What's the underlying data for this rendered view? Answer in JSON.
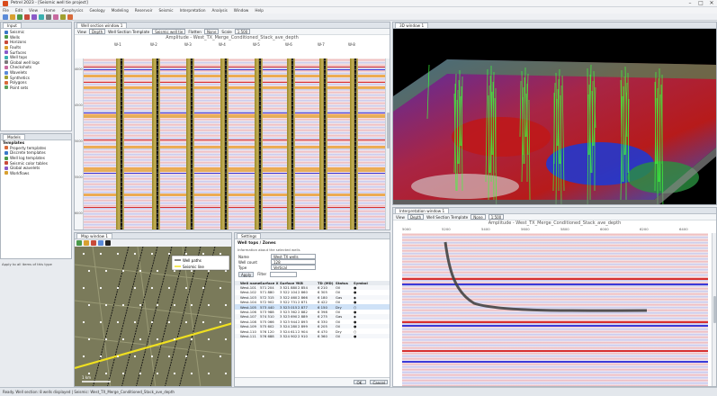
{
  "app": {
    "title": "Petrel 2023 - [Seismic well tie project]",
    "window_controls": [
      "–",
      "□",
      "✕"
    ]
  },
  "menu": [
    "File",
    "Edit",
    "View",
    "Home",
    "Geophysics",
    "Geology",
    "Modeling",
    "Reservoir",
    "Seismic",
    "Interpretation",
    "Analysis",
    "Window",
    "Help"
  ],
  "explorer": {
    "tab_label": "Input",
    "items": [
      {
        "label": "Seismic",
        "color": "#3a78c8"
      },
      {
        "label": "Wells",
        "color": "#4a9a4a"
      },
      {
        "label": "Horizons",
        "color": "#c84a3a"
      },
      {
        "label": "Faults",
        "color": "#d8a030"
      },
      {
        "label": "Surfaces",
        "color": "#8a5ac8"
      },
      {
        "label": "Well tops",
        "color": "#3ab0b0"
      },
      {
        "label": "Global well logs",
        "color": "#7a7a7a"
      },
      {
        "label": "Checkshots",
        "color": "#c86aa0"
      },
      {
        "label": "Wavelets",
        "color": "#5a8ad8"
      },
      {
        "label": "Synthetics",
        "color": "#a0a030"
      },
      {
        "label": "Polygons",
        "color": "#d86a3a"
      },
      {
        "label": "Point sets",
        "color": "#5aa05a"
      }
    ]
  },
  "models": {
    "tab_label": "Models",
    "section": "Templates",
    "items": [
      {
        "label": "Property templates",
        "color": "#d86a3a"
      },
      {
        "label": "Discrete templates",
        "color": "#3a78c8"
      },
      {
        "label": "Well log templates",
        "color": "#4a9a4a"
      },
      {
        "label": "Seismic color tables",
        "color": "#c84a3a"
      },
      {
        "label": "Global wavelets",
        "color": "#8a5ac8"
      },
      {
        "label": "Workflows",
        "color": "#d8a030"
      }
    ]
  },
  "sidebar_footer": "Apply to all items of this type",
  "well_section": {
    "tab_label": "Well section window 1",
    "controls": {
      "view_label": "View",
      "domain": "Depth",
      "template_label": "Well Section Template",
      "template_value": "Seismic well tie",
      "flatten_label": "Flatten",
      "flatten_value": "None",
      "scale_label": "Scale",
      "scale_value": "1:500"
    },
    "title": "Amplitude - West_TX_Merge_Conditioned_Stack_ave_depth",
    "depth_ticks": [
      "4000",
      "4500",
      "5000",
      "5500",
      "6000"
    ],
    "well_headers": [
      "W-1",
      "W-2",
      "W-3",
      "W-4",
      "W-5",
      "W-6",
      "W-7",
      "W-8"
    ]
  },
  "view3d": {
    "tab_label": "3D window 1"
  },
  "map": {
    "tab_label": "Map window 1",
    "legend": [
      "Well paths",
      "Seismic line"
    ],
    "scale": "1 km"
  },
  "settings": {
    "tab_label": "Settings",
    "header": "Well tops / Zones",
    "subheader": "Information about the selected wells",
    "fields": [
      {
        "label": "Name",
        "value": "West TX wells"
      },
      {
        "label": "Well count",
        "value": "128"
      },
      {
        "label": "Type",
        "value": "Vertical"
      }
    ],
    "button": "Apply",
    "filter_label": "Filter",
    "columns": [
      "Well name",
      "Surface X",
      "Surface Y",
      "KB",
      "TD (MD)",
      "Status",
      "Symbol"
    ],
    "rows": [
      [
        "West-101",
        "571 204",
        "3 521 880",
        "2 854",
        "6 210",
        "Oil",
        "●"
      ],
      [
        "West-102",
        "571 880",
        "3 522 104",
        "2 860",
        "6 305",
        "Oil",
        "●"
      ],
      [
        "West-103",
        "572 315",
        "3 522 460",
        "2 866",
        "6 180",
        "Gas",
        "◆"
      ],
      [
        "West-104",
        "572 902",
        "3 522 731",
        "2 871",
        "6 422",
        "Oil",
        "●"
      ],
      [
        "West-105",
        "573 440",
        "3 523 015",
        "2 877",
        "6 150",
        "Dry",
        "○"
      ],
      [
        "West-106",
        "573 988",
        "3 523 362",
        "2 882",
        "6 398",
        "Oil",
        "●"
      ],
      [
        "West-107",
        "574 510",
        "3 523 690",
        "2 889",
        "6 275",
        "Gas",
        "◆"
      ],
      [
        "West-108",
        "575 066",
        "3 523 944",
        "2 893",
        "6 330",
        "Oil",
        "●"
      ],
      [
        "West-109",
        "575 602",
        "3 524 280",
        "2 899",
        "6 205",
        "Oil",
        "●"
      ],
      [
        "West-110",
        "576 120",
        "3 524 611",
        "2 904",
        "6 470",
        "Dry",
        "○"
      ],
      [
        "West-111",
        "576 688",
        "3 524 902",
        "2 910",
        "6 360",
        "Oil",
        "●"
      ]
    ],
    "footer_buttons": [
      "OK",
      "Cancel"
    ]
  },
  "interpretation": {
    "tab_label": "Interpretation window 1",
    "controls": {
      "view_label": "View",
      "domain": "Depth",
      "template_label": "Well Section Template",
      "flatten_value": "None",
      "scale_value": "1:500"
    },
    "title": "Amplitude - West_TX_Merge_Conditioned_Stack_ave_depth",
    "axis_ticks": [
      "5000",
      "5200",
      "5400",
      "5600",
      "5800",
      "6000",
      "6200",
      "6400"
    ]
  },
  "statusbar": "Ready. Well section: 8 wells displayed  |  Seismic: West_TX_Merge_Conditioned_Stack_ave_depth"
}
